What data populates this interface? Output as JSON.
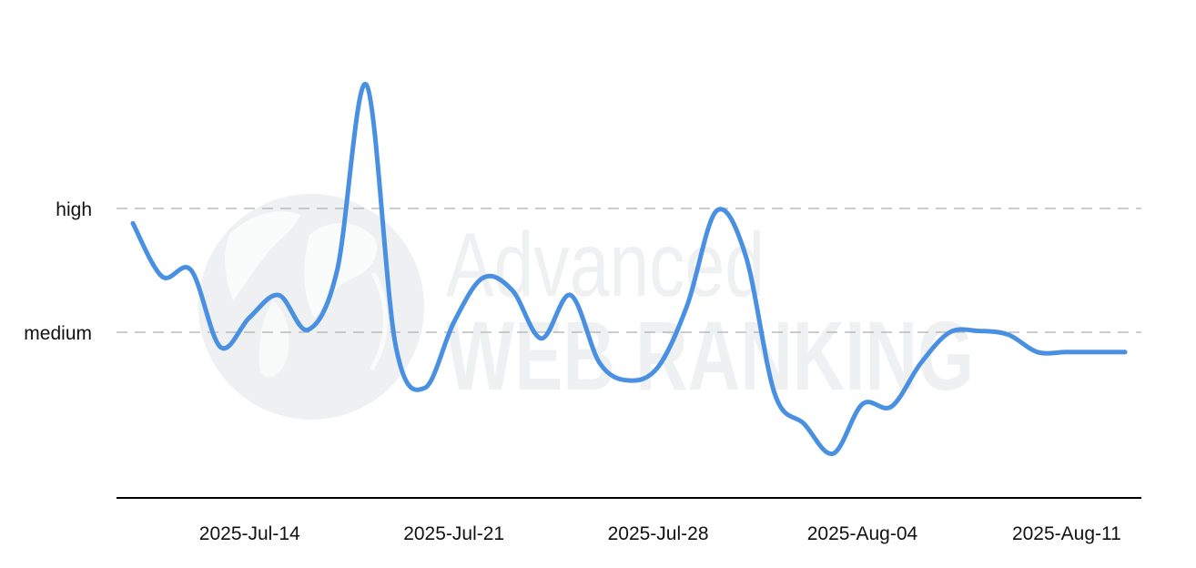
{
  "watermark": {
    "line1": "Advanced",
    "line2": "WEB RANKING",
    "icon": "globe-icon"
  },
  "colors": {
    "line": "#4a90e2",
    "grid": "#bbbbbb",
    "axis": "#000000",
    "watermark": "#eef0f1"
  },
  "chart_data": {
    "type": "line",
    "title": "",
    "xlabel": "",
    "ylabel": "",
    "y_levels": [
      {
        "label": "high",
        "value": 1
      },
      {
        "label": "medium",
        "value": 0
      }
    ],
    "grid": "dashed horizontal at level ticks",
    "legend": "none",
    "xlim": [
      "2025-07-10",
      "2025-08-13"
    ],
    "ylim": [
      -1.35,
      1.0
    ],
    "x_ticks": [
      "2025-Jul-14",
      "2025-Jul-21",
      "2025-Jul-28",
      "2025-Aug-04",
      "2025-Aug-11"
    ],
    "x_tick_dates": [
      "2025-07-14",
      "2025-07-21",
      "2025-07-28",
      "2025-08-04",
      "2025-08-11"
    ],
    "series": [
      {
        "x": [
          "2025-07-10",
          "2025-07-11",
          "2025-07-12",
          "2025-07-13",
          "2025-07-14",
          "2025-07-15",
          "2025-07-16",
          "2025-07-17",
          "2025-07-18",
          "2025-07-19",
          "2025-07-20",
          "2025-07-21",
          "2025-07-22",
          "2025-07-23",
          "2025-07-24",
          "2025-07-25",
          "2025-07-26",
          "2025-07-27",
          "2025-07-28",
          "2025-07-29",
          "2025-07-30",
          "2025-07-31",
          "2025-08-01",
          "2025-08-02",
          "2025-08-03",
          "2025-08-04",
          "2025-08-05",
          "2025-08-06",
          "2025-08-07",
          "2025-08-08",
          "2025-08-09",
          "2025-08-10",
          "2025-08-11",
          "2025-08-12",
          "2025-08-13"
        ],
        "values": [
          0.88,
          0.45,
          0.5,
          -0.12,
          0.12,
          0.3,
          0.02,
          0.5,
          2.0,
          -0.1,
          -0.45,
          0.08,
          0.44,
          0.34,
          -0.05,
          0.3,
          -0.25,
          -0.39,
          -0.28,
          0.22,
          0.98,
          0.62,
          -0.5,
          -0.74,
          -0.98,
          -0.58,
          -0.6,
          -0.25,
          0.0,
          0.01,
          -0.02,
          -0.16,
          -0.16,
          -0.16,
          -0.16
        ]
      }
    ]
  }
}
